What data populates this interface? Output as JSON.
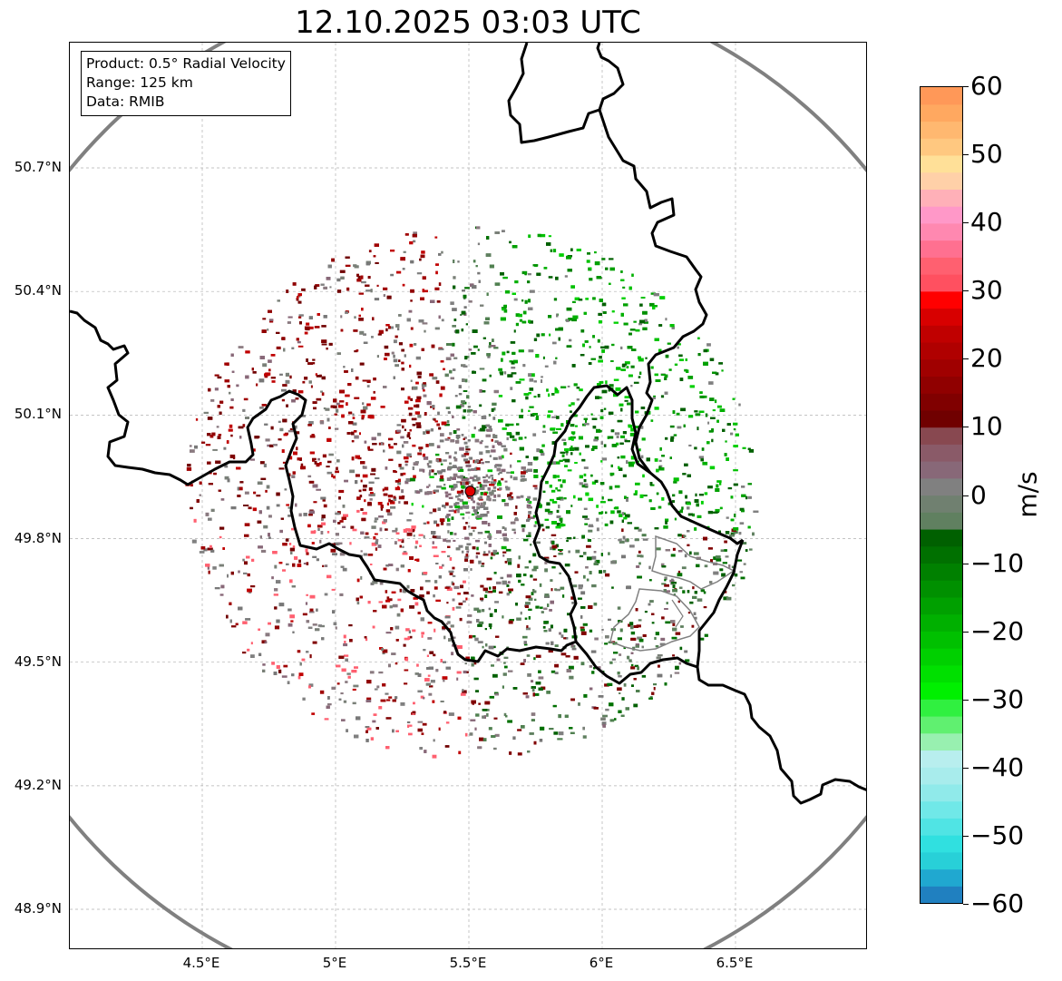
{
  "title": "12.10.2025 03:03 UTC",
  "info": {
    "product": "Product: 0.5° Radial Velocity",
    "range": "Range: 125 km",
    "data": "Data: RMIB"
  },
  "map": {
    "lon_range": [
      4.0,
      7.0
    ],
    "lat_range": [
      48.8,
      50.98
    ],
    "radar_site": {
      "lon": 5.505,
      "lat": 49.915
    },
    "range_km": 125,
    "lat_ticks": [
      {
        "value": 50.7,
        "label": "50.7°N"
      },
      {
        "value": 50.4,
        "label": "50.4°N"
      },
      {
        "value": 50.1,
        "label": "50.1°N"
      },
      {
        "value": 49.8,
        "label": "49.8°N"
      },
      {
        "value": 49.5,
        "label": "49.5°N"
      },
      {
        "value": 49.2,
        "label": "49.2°N"
      },
      {
        "value": 48.9,
        "label": "48.9°N"
      }
    ],
    "lon_ticks": [
      {
        "value": 4.5,
        "label": "4.5°E"
      },
      {
        "value": 5.0,
        "label": "5°E"
      },
      {
        "value": 5.5,
        "label": "5.5°E"
      },
      {
        "value": 6.0,
        "label": "6°E"
      },
      {
        "value": 6.5,
        "label": "6.5°E"
      }
    ],
    "colors": {
      "border": "#000000",
      "region_border": "#808080",
      "range_ring": "#808080",
      "grid": "#b0b0b0",
      "radar_marker": "#e00000"
    }
  },
  "colorbar": {
    "unit": "m/s",
    "min": -60,
    "max": 60,
    "ticks": [
      {
        "value": 60,
        "label": "60"
      },
      {
        "value": 50,
        "label": "50"
      },
      {
        "value": 40,
        "label": "40"
      },
      {
        "value": 30,
        "label": "30"
      },
      {
        "value": 20,
        "label": "20"
      },
      {
        "value": 10,
        "label": "10"
      },
      {
        "value": 0,
        "label": "0"
      },
      {
        "value": -10,
        "label": "−10"
      },
      {
        "value": -20,
        "label": "−20"
      },
      {
        "value": -30,
        "label": "−30"
      },
      {
        "value": -40,
        "label": "−40"
      },
      {
        "value": -50,
        "label": "−50"
      },
      {
        "value": -60,
        "label": "−60"
      }
    ],
    "colors": [
      "#2080c0",
      "#20a8d0",
      "#28d0d8",
      "#30e0e0",
      "#50e4e4",
      "#70e8e8",
      "#90eaea",
      "#a8ecec",
      "#b8eeee",
      "#98f0b0",
      "#60f070",
      "#30f040",
      "#00f000",
      "#00e000",
      "#00d000",
      "#00c000",
      "#00b000",
      "#00a000",
      "#009000",
      "#008000",
      "#007000",
      "#006000",
      "#608060",
      "#708070",
      "#808080",
      "#886878",
      "#8a5a68",
      "#884850",
      "#700000",
      "#800000",
      "#900000",
      "#a00000",
      "#b00000",
      "#c00000",
      "#d80000",
      "#ff0000",
      "#ff5060",
      "#ff6070",
      "#ff7090",
      "#ff88b0",
      "#ff98c8",
      "#ffb0b8",
      "#ffd0a8",
      "#ffe098",
      "#ffc880",
      "#ffb870",
      "#ffa860",
      "#ff9858"
    ]
  }
}
